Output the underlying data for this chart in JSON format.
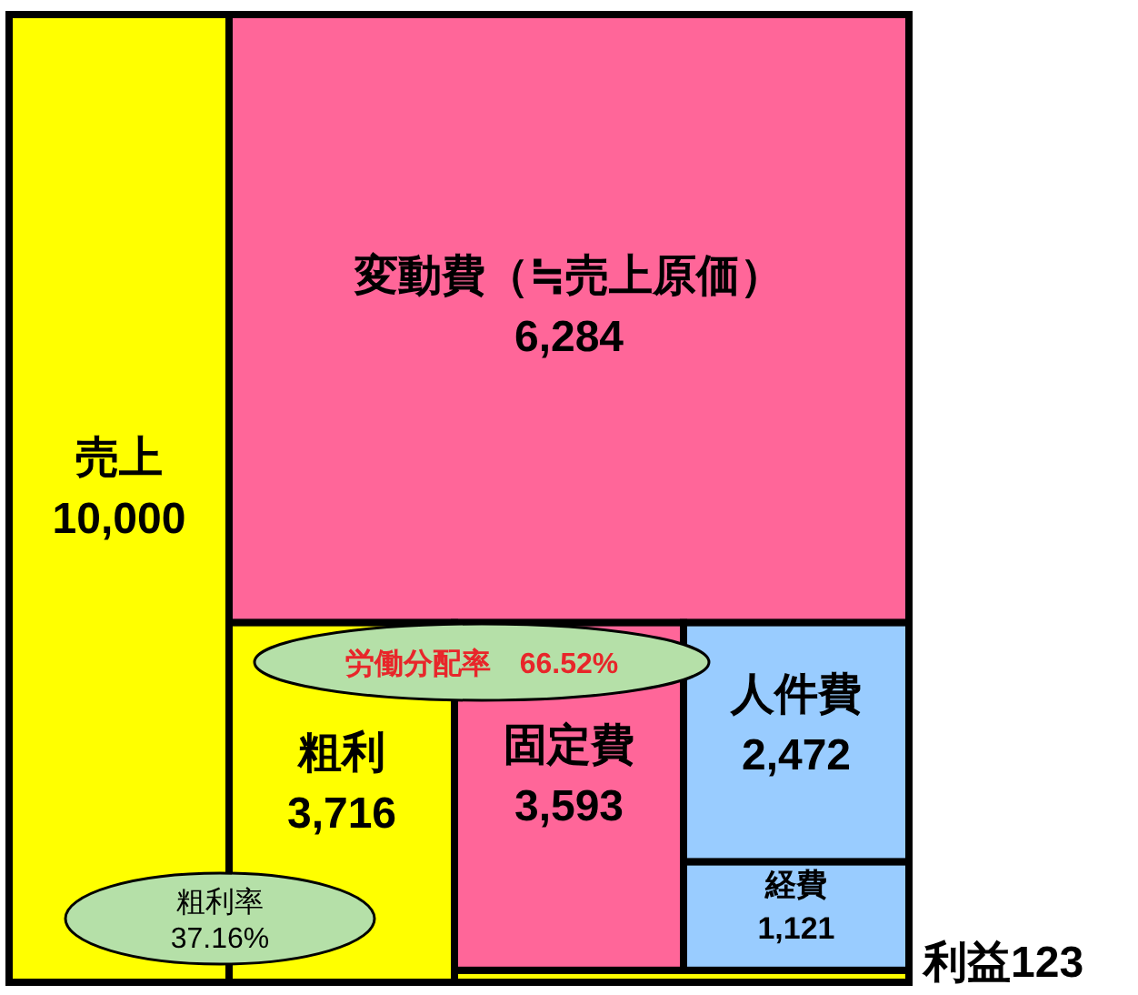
{
  "chart_data": {
    "type": "other",
    "categories": [
      "売上",
      "変動費（≒売上原価）",
      "粗利",
      "固定費",
      "人件費",
      "経費",
      "利益"
    ],
    "values": [
      10000,
      6284,
      3716,
      3593,
      2472,
      1121,
      123
    ],
    "value_labels": [
      "10,000",
      "6,284",
      "3,716",
      "3,593",
      "2,472",
      "1,121",
      "123"
    ],
    "colors": [
      "#ffff00",
      "#ff6699",
      "#ffff00",
      "#ff6699",
      "#99ccff",
      "#99ccff",
      "#ffff00"
    ],
    "annotations": [
      "労働分配率　66.52%",
      "粗利率\n37.16%"
    ]
  }
}
